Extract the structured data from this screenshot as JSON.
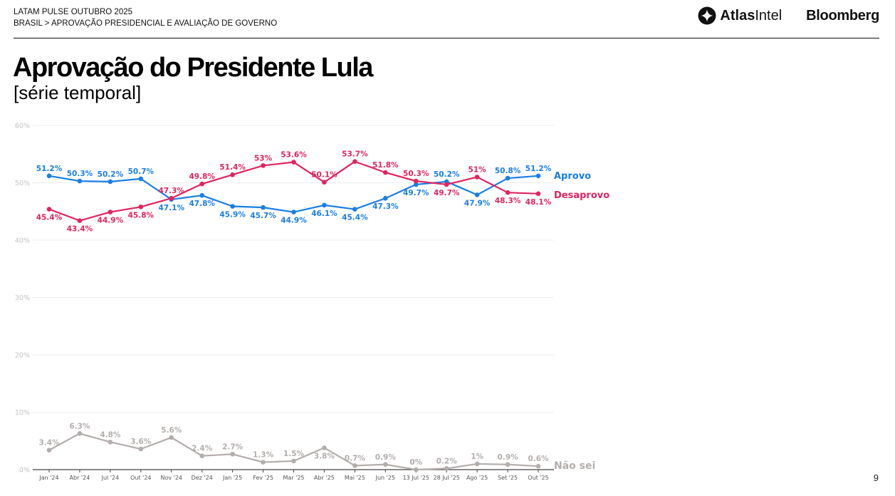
{
  "header": {
    "line1": "LATAM PULSE OUTUBRO 2025",
    "line2": "BRASIL > APROVAÇÃO PRESIDENCIAL E AVALIAÇÃO DE GOVERNO",
    "logo_atlas_bold": "Atlas",
    "logo_atlas_light": "Intel",
    "logo_bloomberg": "Bloomberg"
  },
  "page": {
    "title": "Aprovação do Presidente Lula",
    "subtitle": "[série temporal]",
    "page_number": "9"
  },
  "colors": {
    "aprovo": "#1a7ee6",
    "desaprovo": "#e0245e",
    "naosei": "#b3aeac",
    "grid": "#ededed",
    "axis_text": "#c4c4c4"
  },
  "chart_data": {
    "type": "line",
    "title": "Aprovação do Presidente Lula",
    "subtitle": "[série temporal]",
    "xlabel": "",
    "ylabel": "",
    "ylim": [
      0,
      60
    ],
    "yticks": [
      "0%",
      "10%",
      "20%",
      "30%",
      "40%",
      "50%",
      "60%"
    ],
    "grid": true,
    "legend": "inline-right",
    "categories": [
      "Jan '24",
      "Abr '24",
      "Jul '24",
      "Out '24",
      "Nov '24",
      "Dez '24",
      "Jan '25",
      "Fev '25",
      "Mar '25",
      "Abr '25",
      "Mai '25",
      "Jun '25",
      "13 Jul '25",
      "28 Jul '25",
      "Ago '25",
      "Set '25",
      "Out '25"
    ],
    "series": [
      {
        "name": "Aprovo",
        "values": [
          51.2,
          50.3,
          50.2,
          50.7,
          47.1,
          47.8,
          45.9,
          45.7,
          44.9,
          46.1,
          45.4,
          47.3,
          49.7,
          50.2,
          47.9,
          50.8,
          51.2
        ],
        "labels": [
          "51.2%",
          "50.3%",
          "50.2%",
          "50.7%",
          "47.1%",
          "47.8%",
          "45.9%",
          "45.7%",
          "44.9%",
          "46.1%",
          "45.4%",
          "47.3%",
          "49.7%",
          "50.2%",
          "47.9%",
          "50.8%",
          "51.2%"
        ],
        "label_pos": [
          "above",
          "above",
          "above",
          "above",
          "below",
          "below",
          "below",
          "below",
          "below",
          "below",
          "below",
          "below",
          "below",
          "above",
          "below",
          "above",
          "above"
        ]
      },
      {
        "name": "Desaprovo",
        "values": [
          45.4,
          43.4,
          44.9,
          45.8,
          47.3,
          49.8,
          51.4,
          53.0,
          53.6,
          50.1,
          53.7,
          51.8,
          50.3,
          49.7,
          51.0,
          48.3,
          48.1
        ],
        "labels": [
          "45.4%",
          "43.4%",
          "44.9%",
          "45.8%",
          "47.3%",
          "49.8%",
          "51.4%",
          "53%",
          "53.6%",
          "50.1%",
          "53.7%",
          "51.8%",
          "50.3%",
          "49.7%",
          "51%",
          "48.3%",
          "48.1%"
        ],
        "label_pos": [
          "below",
          "below",
          "below",
          "below",
          "above",
          "above",
          "above",
          "above",
          "above",
          "above",
          "above",
          "above",
          "above",
          "below",
          "above",
          "below",
          "below"
        ]
      },
      {
        "name": "Não sei",
        "values": [
          3.4,
          6.3,
          4.8,
          3.6,
          5.6,
          2.4,
          2.7,
          1.3,
          1.5,
          3.8,
          0.7,
          0.9,
          0.0,
          0.2,
          1.0,
          0.9,
          0.6
        ],
        "labels": [
          "3.4%",
          "6.3%",
          "4.8%",
          "3.6%",
          "5.6%",
          "2.4%",
          "2.7%",
          "1.3%",
          "1.5%",
          "3.8%",
          "0.7%",
          "0.9%",
          "0%",
          "0.2%",
          "1%",
          "0.9%",
          "0.6%"
        ],
        "label_pos": [
          "above",
          "above",
          "above",
          "above",
          "above",
          "above",
          "above",
          "above",
          "above",
          "below",
          "above",
          "above",
          "above",
          "above",
          "above",
          "above",
          "above"
        ]
      }
    ]
  }
}
